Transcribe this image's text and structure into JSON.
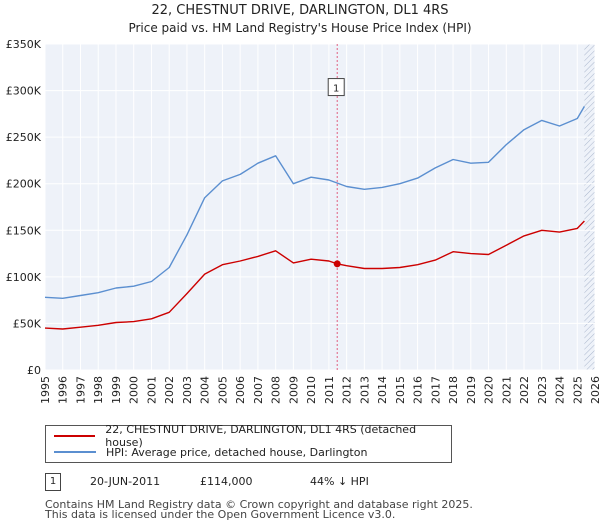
{
  "chart_data": {
    "type": "line",
    "title": "22, CHESTNUT DRIVE, DARLINGTON, DL1 4RS",
    "subtitle": "Price paid vs. HM Land Registry's House Price Index (HPI)",
    "xlim": [
      1995,
      2026
    ],
    "ylim": [
      0,
      350000
    ],
    "x_ticks": [
      "1995",
      "1996",
      "1997",
      "1998",
      "1999",
      "2000",
      "2001",
      "2002",
      "2003",
      "2004",
      "2005",
      "2006",
      "2007",
      "2008",
      "2009",
      "2010",
      "2011",
      "2012",
      "2013",
      "2014",
      "2015",
      "2016",
      "2017",
      "2018",
      "2019",
      "2020",
      "2021",
      "2022",
      "2023",
      "2024",
      "2025",
      "2026"
    ],
    "y_ticks": [
      {
        "value": 0,
        "label": "£0"
      },
      {
        "value": 50000,
        "label": "£50K"
      },
      {
        "value": 100000,
        "label": "£100K"
      },
      {
        "value": 150000,
        "label": "£150K"
      },
      {
        "value": 200000,
        "label": "£200K"
      },
      {
        "value": 250000,
        "label": "£250K"
      },
      {
        "value": 300000,
        "label": "£300K"
      },
      {
        "value": 350000,
        "label": "£350K"
      }
    ],
    "series": [
      {
        "name": "22, CHESTNUT DRIVE, DARLINGTON, DL1 4RS (detached house)",
        "color": "#cc0000",
        "x": [
          1995,
          1996,
          1997,
          1998,
          1999,
          2000,
          2001,
          2002,
          2003,
          2004,
          2005,
          2006,
          2007,
          2008,
          2009,
          2010,
          2011,
          2011.47,
          2012,
          2013,
          2014,
          2015,
          2016,
          2017,
          2018,
          2019,
          2020,
          2021,
          2022,
          2023,
          2024,
          2025,
          2025.4
        ],
        "values": [
          45000,
          44000,
          46000,
          48000,
          51000,
          52000,
          55000,
          62000,
          82000,
          103000,
          113000,
          117000,
          122000,
          128000,
          115000,
          119000,
          117000,
          114000,
          112000,
          109000,
          109000,
          110000,
          113000,
          118000,
          127000,
          125000,
          124000,
          134000,
          144000,
          150000,
          148000,
          152000,
          160000
        ]
      },
      {
        "name": "HPI: Average price, detached house, Darlington",
        "color": "#5b8fd0",
        "x": [
          1995,
          1996,
          1997,
          1998,
          1999,
          2000,
          2001,
          2002,
          2003,
          2004,
          2005,
          2006,
          2007,
          2008,
          2009,
          2010,
          2011,
          2012,
          2013,
          2014,
          2015,
          2016,
          2017,
          2018,
          2019,
          2020,
          2021,
          2022,
          2023,
          2024,
          2025,
          2025.4
        ],
        "values": [
          78000,
          77000,
          80000,
          83000,
          88000,
          90000,
          95000,
          110000,
          145000,
          185000,
          203000,
          210000,
          222000,
          230000,
          200000,
          207000,
          204000,
          197000,
          194000,
          196000,
          200000,
          206000,
          217000,
          226000,
          222000,
          223000,
          242000,
          258000,
          268000,
          262000,
          270000,
          283000
        ]
      }
    ],
    "annotation": {
      "label": "1",
      "x": 2011.47
    }
  },
  "legend": {
    "entries": [
      {
        "label": "22, CHESTNUT DRIVE, DARLINGTON, DL1 4RS (detached house)",
        "color": "#cc0000"
      },
      {
        "label": "HPI: Average price, detached house, Darlington",
        "color": "#5b8fd0"
      }
    ]
  },
  "sales": [
    {
      "marker": "1",
      "date": "20-JUN-2011",
      "price": "£114,000",
      "delta": "44% ↓ HPI"
    }
  ],
  "footer": {
    "line1": "Contains HM Land Registry data © Crown copyright and database right 2025.",
    "line2": "This data is licensed under the Open Government Licence v3.0."
  }
}
